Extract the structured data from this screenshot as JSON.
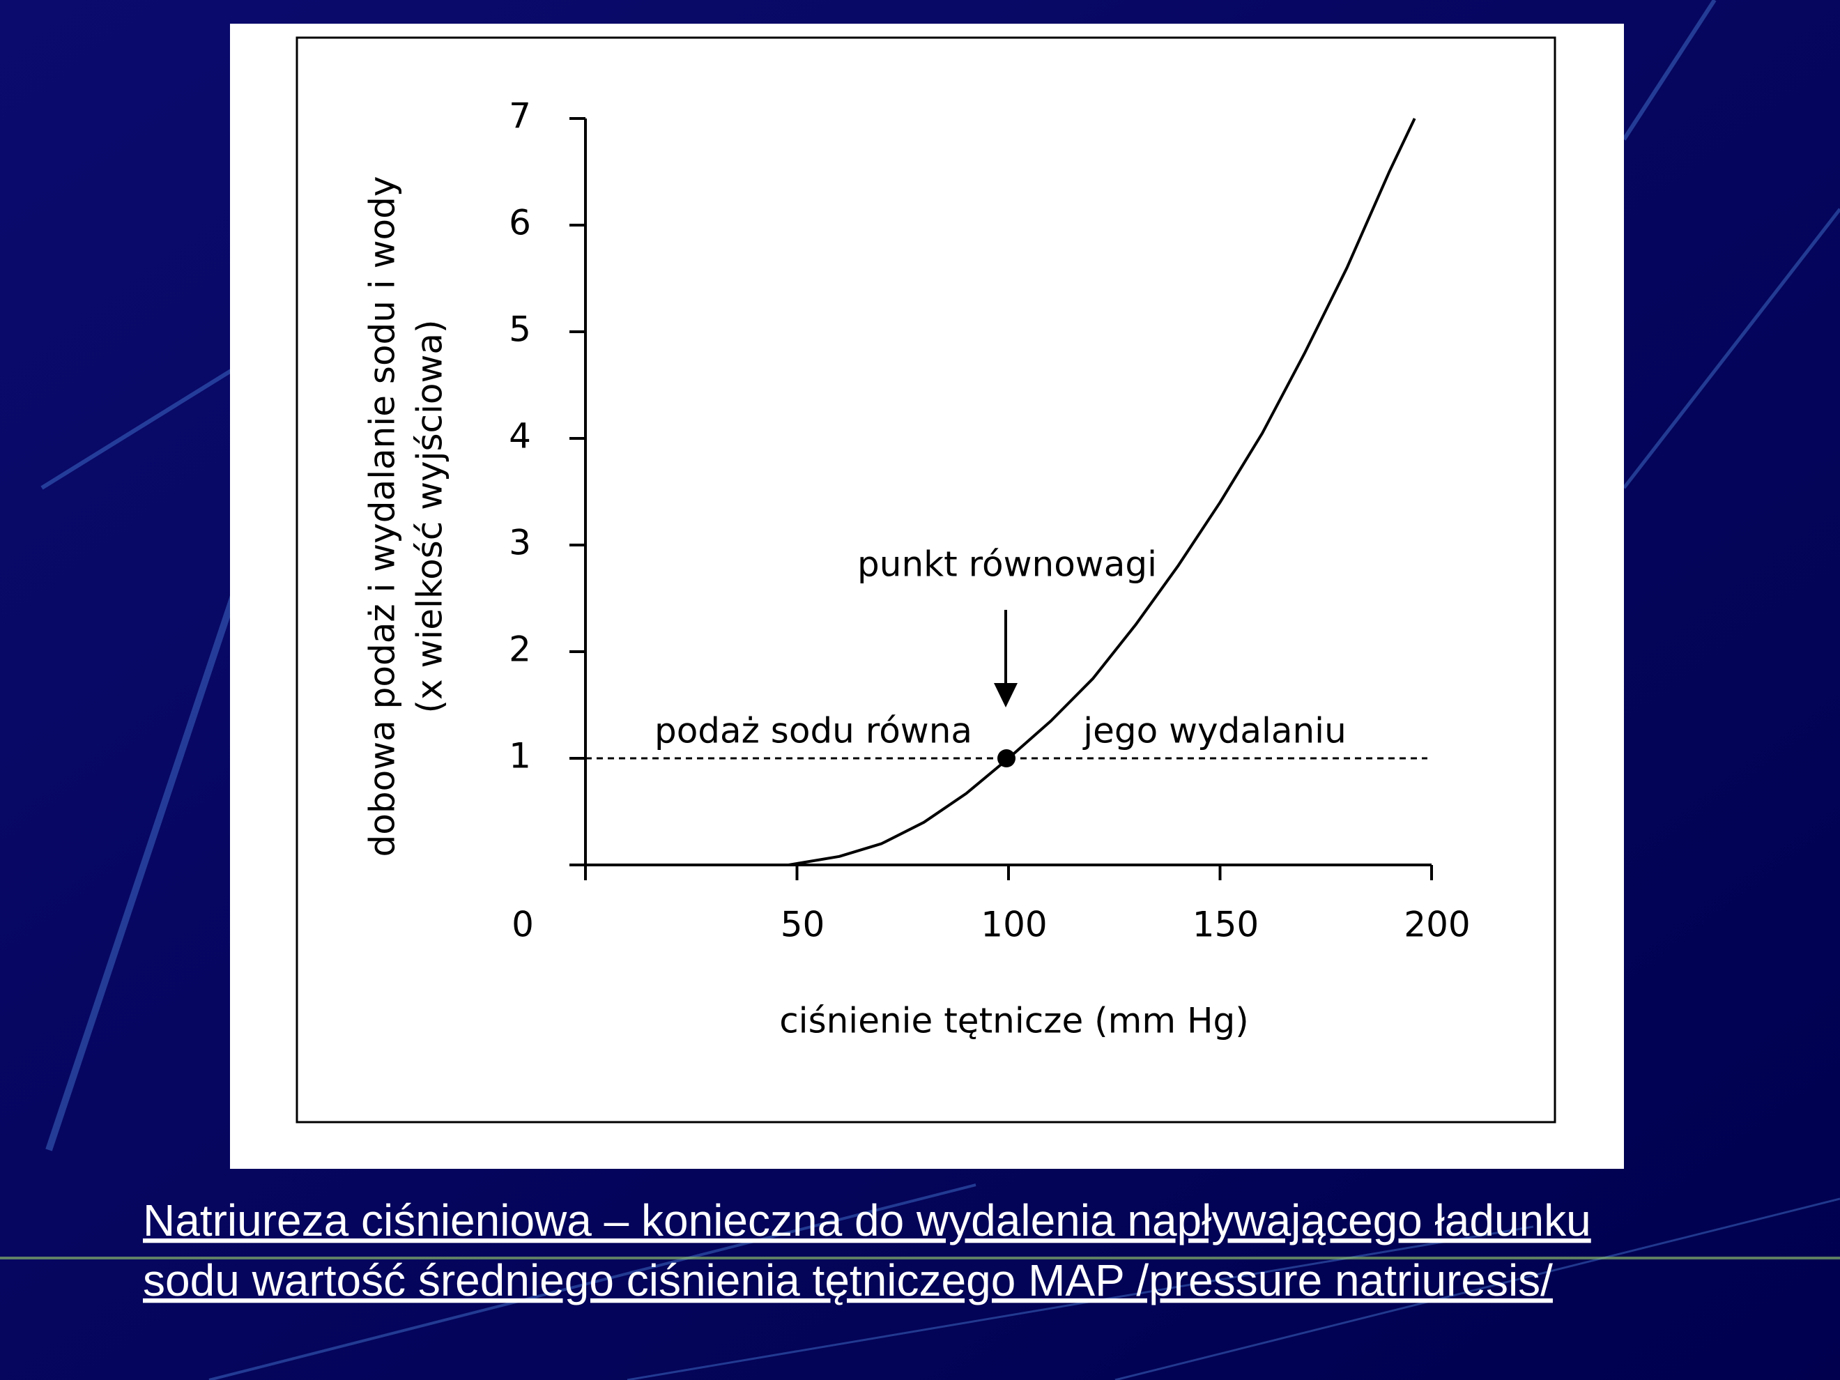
{
  "chart_data": {
    "type": "line",
    "xlabel": "ciśnienie tętnicze (mm Hg)",
    "ylabel": [
      "dobowa podaż i wydalanie sodu i wody",
      "(x wielkość wyjściowa)"
    ],
    "x": [
      48,
      60,
      70,
      80,
      90,
      100,
      110,
      120,
      130,
      140,
      150,
      160,
      170,
      180,
      190,
      196
    ],
    "series": [
      {
        "color": "#000000",
        "values": [
          0,
          0.08,
          0.2,
          0.4,
          0.67,
          1,
          1.35,
          1.75,
          2.25,
          2.8,
          3.4,
          4.05,
          4.8,
          5.6,
          6.5,
          7
        ]
      }
    ],
    "xlim": [
      0,
      200
    ],
    "ylim": [
      0,
      7
    ],
    "xticks": [
      0,
      50,
      100,
      150,
      200
    ],
    "yticks": [
      1,
      2,
      3,
      4,
      5,
      6,
      7
    ],
    "reference_line": 1,
    "equilibrium": {
      "x": 100,
      "y": 1
    },
    "annotations": {
      "point": "punkt równowagi",
      "left": "podaż sodu równa",
      "right": "jego wydalaniu"
    }
  },
  "caption": [
    "Natriureza ciśnieniowa – konieczna do wydalenia napływającego  ładunku",
    "sodu wartość średniego ciśnienia tętniczego  MAP /pressure natriuresis/"
  ]
}
